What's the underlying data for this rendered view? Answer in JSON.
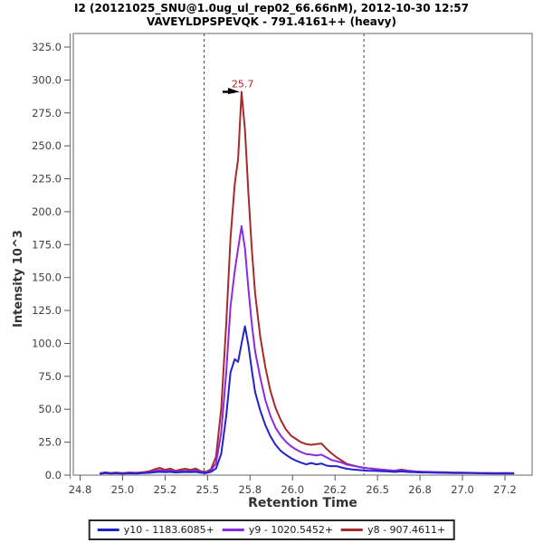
{
  "title": {
    "line1": "I2 (20121025_SNU@1.0ug_ul_rep02_66.66nM), 2012-10-30 12:57",
    "line2": "VAVEYLDPSPEVQK - 791.4161++ (heavy)"
  },
  "y_axis": {
    "label": "Intensity 10^3",
    "tick_values": [
      0,
      25,
      50,
      75,
      100,
      125,
      150,
      175,
      200,
      225,
      250,
      275,
      300,
      325
    ],
    "tick_labels": [
      "0.0",
      "25.0",
      "50.0",
      "75.0",
      "100.0",
      "125.0",
      "150.0",
      "175.0",
      "200.0",
      "225.0",
      "250.0",
      "275.0",
      "300.0",
      "325.0"
    ]
  },
  "x_axis": {
    "label": "Retention Time",
    "tick_values": [
      24.75,
      25.0,
      25.25,
      25.5,
      25.75,
      26.0,
      26.25,
      26.5,
      26.75,
      27.0,
      27.25
    ],
    "tick_labels": [
      "24.8",
      "25.0",
      "25.2",
      "25.5",
      "25.8",
      "26.0",
      "26.2",
      "26.5",
      "26.8",
      "27.0",
      "27.2"
    ]
  },
  "annotation": {
    "text": "25.7",
    "rt": 25.7,
    "intensity": 291,
    "color": "#B22222"
  },
  "peak_boundaries": {
    "start": 25.48,
    "end": 26.42
  },
  "legend": {
    "items": [
      {
        "label": "y10 - 1183.6085+",
        "color": "#2222CC"
      },
      {
        "label": "y9 - 1020.5452+",
        "color": "#8A2BE2"
      },
      {
        "label": "y8 - 907.4611+",
        "color": "#A52A2A"
      }
    ]
  },
  "colors": {
    "frame": "#808080",
    "tick_text": "#404040",
    "boundary": "#444444",
    "annotation_arrow": "#000000"
  },
  "chart_data": {
    "type": "line",
    "title": "I2 (20121025_SNU@1.0ug_ul_rep02_66.66nM), 2012-10-30 12:57 / VAVEYLDPSPEVQK - 791.4161++ (heavy)",
    "xlabel": "Retention Time",
    "ylabel": "Intensity 10^3",
    "xlim": [
      24.71,
      27.41
    ],
    "ylim": [
      0,
      335.3
    ],
    "grid": false,
    "legend_position": "bottom",
    "x": [
      24.87,
      24.9,
      24.93,
      24.96,
      25.0,
      25.04,
      25.08,
      25.12,
      25.16,
      25.19,
      25.22,
      25.25,
      25.28,
      25.31,
      25.34,
      25.37,
      25.4,
      25.43,
      25.46,
      25.49,
      25.52,
      25.55,
      25.58,
      25.61,
      25.635,
      25.66,
      25.68,
      25.7,
      25.72,
      25.74,
      25.76,
      25.78,
      25.81,
      25.84,
      25.87,
      25.9,
      25.93,
      25.96,
      25.99,
      26.02,
      26.05,
      26.08,
      26.11,
      26.14,
      26.17,
      26.2,
      26.23,
      26.26,
      26.29,
      26.32,
      26.36,
      26.4,
      26.44,
      26.48,
      26.52,
      26.56,
      26.6,
      26.64,
      26.68,
      26.72,
      26.76,
      26.8,
      26.85,
      26.9,
      26.95,
      27.0,
      27.05,
      27.1,
      27.15,
      27.2,
      27.25,
      27.3
    ],
    "series": [
      {
        "name": "y10 - 1183.6085+",
        "color": "#2222CC",
        "values": [
          1.0,
          1.5,
          1.2,
          1.4,
          1.1,
          1.4,
          1.2,
          1.5,
          1.8,
          2.2,
          2.5,
          2.2,
          2.5,
          2.0,
          2.2,
          2.4,
          2.2,
          2.5,
          1.8,
          1.5,
          2.5,
          5,
          16,
          45,
          78,
          88,
          86,
          100,
          113,
          99,
          80,
          63,
          49,
          38,
          29.5,
          23,
          18.5,
          15.5,
          13,
          11,
          9.5,
          8.2,
          9.2,
          8.2,
          8.8,
          7.2,
          6.8,
          6.8,
          5.8,
          4.8,
          4.2,
          3.8,
          3.4,
          3.2,
          3.0,
          2.8,
          2.4,
          2.8,
          2.4,
          2.2,
          2.0,
          2.0,
          1.8,
          1.7,
          1.6,
          1.5,
          1.5,
          1.4,
          1.3,
          1.2,
          1.3,
          1.2
        ]
      },
      {
        "name": "y9 - 1020.5452+",
        "color": "#8A2BE2",
        "values": [
          1.2,
          1.8,
          1.4,
          1.6,
          1.3,
          1.6,
          1.5,
          1.8,
          2.2,
          3.0,
          3.8,
          3.0,
          3.5,
          2.5,
          3.0,
          3.2,
          3.0,
          3.5,
          2.2,
          2.0,
          3.5,
          9,
          32,
          78,
          128,
          155,
          172,
          189,
          172,
          142,
          115,
          94,
          74,
          57,
          45,
          36,
          30,
          25.5,
          22,
          19.5,
          17.5,
          16,
          15.5,
          15,
          15.5,
          13.5,
          11.5,
          10.5,
          9.5,
          8,
          7,
          6,
          5.2,
          4.6,
          4.2,
          3.8,
          3.3,
          3.6,
          3.2,
          2.8,
          2.5,
          2.4,
          2.2,
          2.0,
          1.9,
          1.8,
          1.7,
          1.6,
          1.5,
          1.4,
          1.5,
          1.4
        ]
      },
      {
        "name": "y8 - 907.4611+",
        "color": "#A52A2A",
        "values": [
          1.5,
          2.2,
          1.6,
          2.0,
          1.5,
          2.0,
          1.8,
          2.2,
          3.0,
          4.5,
          5.5,
          4.0,
          5.0,
          3.2,
          4.2,
          4.8,
          4.0,
          5.0,
          3.0,
          2.5,
          4.5,
          14,
          50,
          115,
          180,
          221,
          240,
          291,
          262,
          215,
          172,
          138,
          105,
          82,
          64,
          51,
          42,
          35,
          30,
          27.5,
          25,
          23.5,
          23,
          23.5,
          24,
          20,
          16.5,
          13.5,
          11,
          8.5,
          7.2,
          6.0,
          5.2,
          4.8,
          4.2,
          3.8,
          3.4,
          4.2,
          3.4,
          2.8,
          2.6,
          2.5,
          2.2,
          2.2,
          2.0,
          1.9,
          1.8,
          1.6,
          1.6,
          1.5,
          1.6,
          1.5
        ]
      }
    ]
  }
}
